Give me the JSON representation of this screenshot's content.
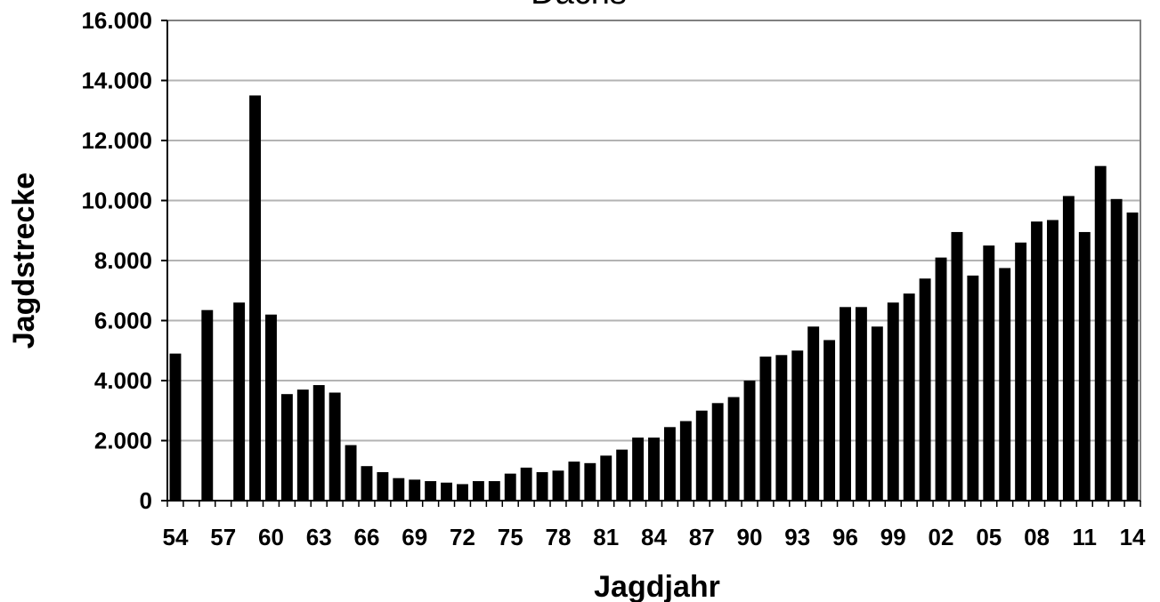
{
  "chart_data": {
    "type": "bar",
    "title": "Dachs",
    "xlabel": "Jagdjahr",
    "ylabel": "Jagdstrecke",
    "ylim": [
      0,
      16000
    ],
    "yticks": [
      0,
      2000,
      4000,
      6000,
      8000,
      10000,
      12000,
      14000,
      16000
    ],
    "ytick_labels": [
      "0",
      "2.000",
      "4.000",
      "6.000",
      "8.000",
      "10.000",
      "12.000",
      "14.000",
      "16.000"
    ],
    "xtick_labels": [
      "54",
      "57",
      "60",
      "63",
      "66",
      "69",
      "72",
      "75",
      "78",
      "81",
      "84",
      "87",
      "90",
      "93",
      "96",
      "99",
      "02",
      "05",
      "08",
      "11",
      "14"
    ],
    "grid": true,
    "legend": "none",
    "bar_color": "#000000",
    "categories": [
      "1954",
      "1955",
      "1956",
      "1957",
      "1958",
      "1959",
      "1960",
      "1961",
      "1962",
      "1963",
      "1964",
      "1965",
      "1966",
      "1967",
      "1968",
      "1969",
      "1970",
      "1971",
      "1972",
      "1973",
      "1974",
      "1975",
      "1976",
      "1977",
      "1978",
      "1979",
      "1980",
      "1981",
      "1982",
      "1983",
      "1984",
      "1985",
      "1986",
      "1987",
      "1988",
      "1989",
      "1990",
      "1991",
      "1992",
      "1993",
      "1994",
      "1995",
      "1996",
      "1997",
      "1998",
      "1999",
      "2000",
      "2001",
      "2002",
      "2003",
      "2004",
      "2005",
      "2006",
      "2007",
      "2008",
      "2009",
      "2010",
      "2011",
      "2012",
      "2013",
      "2014"
    ],
    "values": [
      4900,
      null,
      6350,
      null,
      6600,
      13500,
      6200,
      3550,
      3700,
      3850,
      3600,
      1850,
      1150,
      950,
      750,
      700,
      650,
      600,
      550,
      650,
      650,
      900,
      1100,
      950,
      1000,
      1300,
      1250,
      1500,
      1700,
      2100,
      2100,
      2450,
      2650,
      3000,
      3250,
      3450,
      4000,
      4800,
      4850,
      5000,
      5800,
      5350,
      6450,
      6450,
      5800,
      6600,
      6900,
      7400,
      8100,
      8950,
      7500,
      8500,
      7750,
      8600,
      9300,
      9350,
      10150,
      8950,
      11150,
      10050,
      9600
    ]
  }
}
